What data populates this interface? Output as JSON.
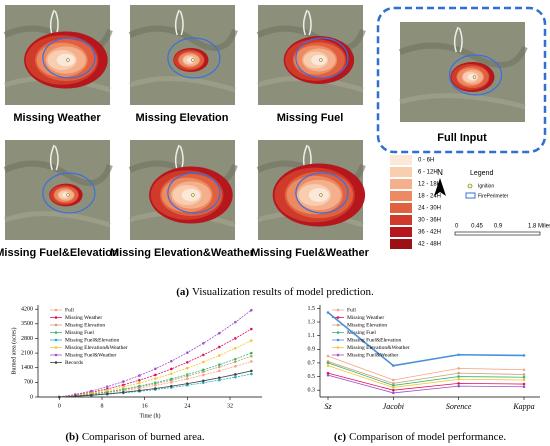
{
  "figure": {
    "panels": [
      "Missing Weather",
      "Missing Elevation",
      "Missing Fuel",
      "Missing Fuel&Elevation",
      "Missing Elevation&Weather",
      "Missing Fuel&Weather"
    ],
    "full_input": "Full Input",
    "classes": [
      "0 - 6H",
      "6 - 12H",
      "12 - 18H",
      "18 - 24H",
      "24 - 30H",
      "30 - 36H",
      "36 - 42H",
      "42 - 48H"
    ],
    "north": "N",
    "legend_title": "Legend",
    "legend_items": [
      "Ignition",
      "FirePerimeter"
    ],
    "scale": [
      "0",
      "0.45",
      "0.9",
      "1.8 Miles"
    ],
    "caption_a": {
      "label": "(a)",
      "text": "Visualization results of model prediction."
    },
    "caption_b": {
      "label": "(b)",
      "text": "Comparison of burned area."
    },
    "caption_c": {
      "label": "(c)",
      "text": "Comparison of model performance."
    }
  },
  "chart_data": [
    {
      "type": "line",
      "xlabel": "Time (h)",
      "ylabel": "Burned area (acres)",
      "x": [
        0,
        3,
        6,
        9,
        12,
        15,
        18,
        21,
        24,
        27,
        30,
        33,
        36
      ],
      "xlim": [
        -4,
        38
      ],
      "xticks": [
        0,
        8,
        16,
        24,
        32
      ],
      "ylim": [
        0,
        4400
      ],
      "yticks": [
        0,
        700,
        1400,
        2100,
        2800,
        3500,
        4200
      ],
      "series": [
        {
          "name": "Full",
          "color": "#f4a582",
          "values": [
            0,
            51,
            117,
            202,
            303,
            420,
            553,
            702,
            869,
            1052,
            1251,
            1467,
            1700
          ]
        },
        {
          "name": "Missing Weather",
          "color": "#e0115f",
          "values": [
            0,
            98,
            224,
            387,
            579,
            803,
            1056,
            1342,
            1661,
            2012,
            2392,
            2805,
            3250
          ]
        },
        {
          "name": "Missing Elevation",
          "color": "#c8a27a",
          "values": [
            0,
            59,
            135,
            232,
            347,
            482,
            634,
            805,
            996,
            1207,
            1435,
            1683,
            1950
          ]
        },
        {
          "name": "Missing Fuel",
          "color": "#3cb371",
          "values": [
            0,
            63,
            145,
            250,
            374,
            519,
            683,
            867,
            1073,
            1300,
            1546,
            1812,
            2100
          ]
        },
        {
          "name": "Missing Fuel&Elevation",
          "color": "#20b2c8",
          "values": [
            0,
            33,
            76,
            131,
            196,
            272,
            358,
            454,
            562,
            681,
            810,
            949,
            1100
          ]
        },
        {
          "name": "Missing Elevation&Weather",
          "color": "#f2c830",
          "values": [
            0,
            81,
            186,
            321,
            481,
            667,
            878,
            1115,
            1380,
            1671,
            1987,
            2330,
            2700
          ]
        },
        {
          "name": "Missing Fuel&Weather",
          "color": "#a050d0",
          "values": [
            0,
            125,
            286,
            494,
            739,
            1025,
            1349,
            1714,
            2121,
            2569,
            3054,
            3581,
            4150
          ]
        },
        {
          "name": "Records",
          "color": "#404040",
          "values": [
            0,
            38,
            86,
            149,
            223,
            309,
            406,
            516,
            639,
            774,
            920,
            1079,
            1250
          ]
        }
      ]
    },
    {
      "type": "line",
      "categories": [
        "Sz",
        "Jacobi",
        "Sorence",
        "Kappa"
      ],
      "ylim": [
        0.2,
        1.55
      ],
      "yticks": [
        0.3,
        0.5,
        0.7,
        0.9,
        1.1,
        1.3,
        1.5
      ],
      "series": [
        {
          "name": "Full",
          "color": "#f4a582",
          "values": [
            0.8,
            0.45,
            0.62,
            0.6
          ]
        },
        {
          "name": "Missing Weather",
          "color": "#e0115f",
          "values": [
            0.55,
            0.3,
            0.4,
            0.39
          ]
        },
        {
          "name": "Missing Elevation",
          "color": "#c8a27a",
          "values": [
            0.72,
            0.4,
            0.55,
            0.53
          ]
        },
        {
          "name": "Missing Fuel",
          "color": "#3cb371",
          "values": [
            0.7,
            0.37,
            0.5,
            0.49
          ]
        },
        {
          "name": "Missing Fuel&Elevation",
          "color": "#4a90d9",
          "values": [
            1.44,
            0.66,
            0.82,
            0.81
          ]
        },
        {
          "name": "Missing Elevation&Weather",
          "color": "#f2c830",
          "values": [
            0.66,
            0.34,
            0.46,
            0.45
          ]
        },
        {
          "name": "Missing Fuel&Weather",
          "color": "#a050d0",
          "values": [
            0.52,
            0.26,
            0.36,
            0.35
          ]
        }
      ]
    }
  ]
}
